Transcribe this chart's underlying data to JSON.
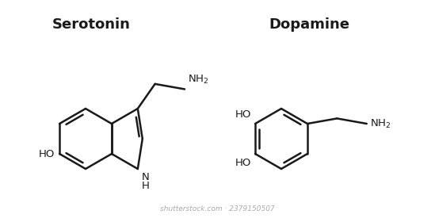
{
  "background_color": "#ffffff",
  "title_serotonin": "Serotonin",
  "title_dopamine": "Dopamine",
  "title_fontsize": 13,
  "title_fontweight": "bold",
  "line_color": "#1a1a1a",
  "line_width": 1.8,
  "text_color": "#1a1a1a",
  "label_fontsize": 9.5,
  "watermark": "shutterstock.com · 2379150507",
  "watermark_fontsize": 6.5,
  "watermark_color": "#aaaaaa"
}
